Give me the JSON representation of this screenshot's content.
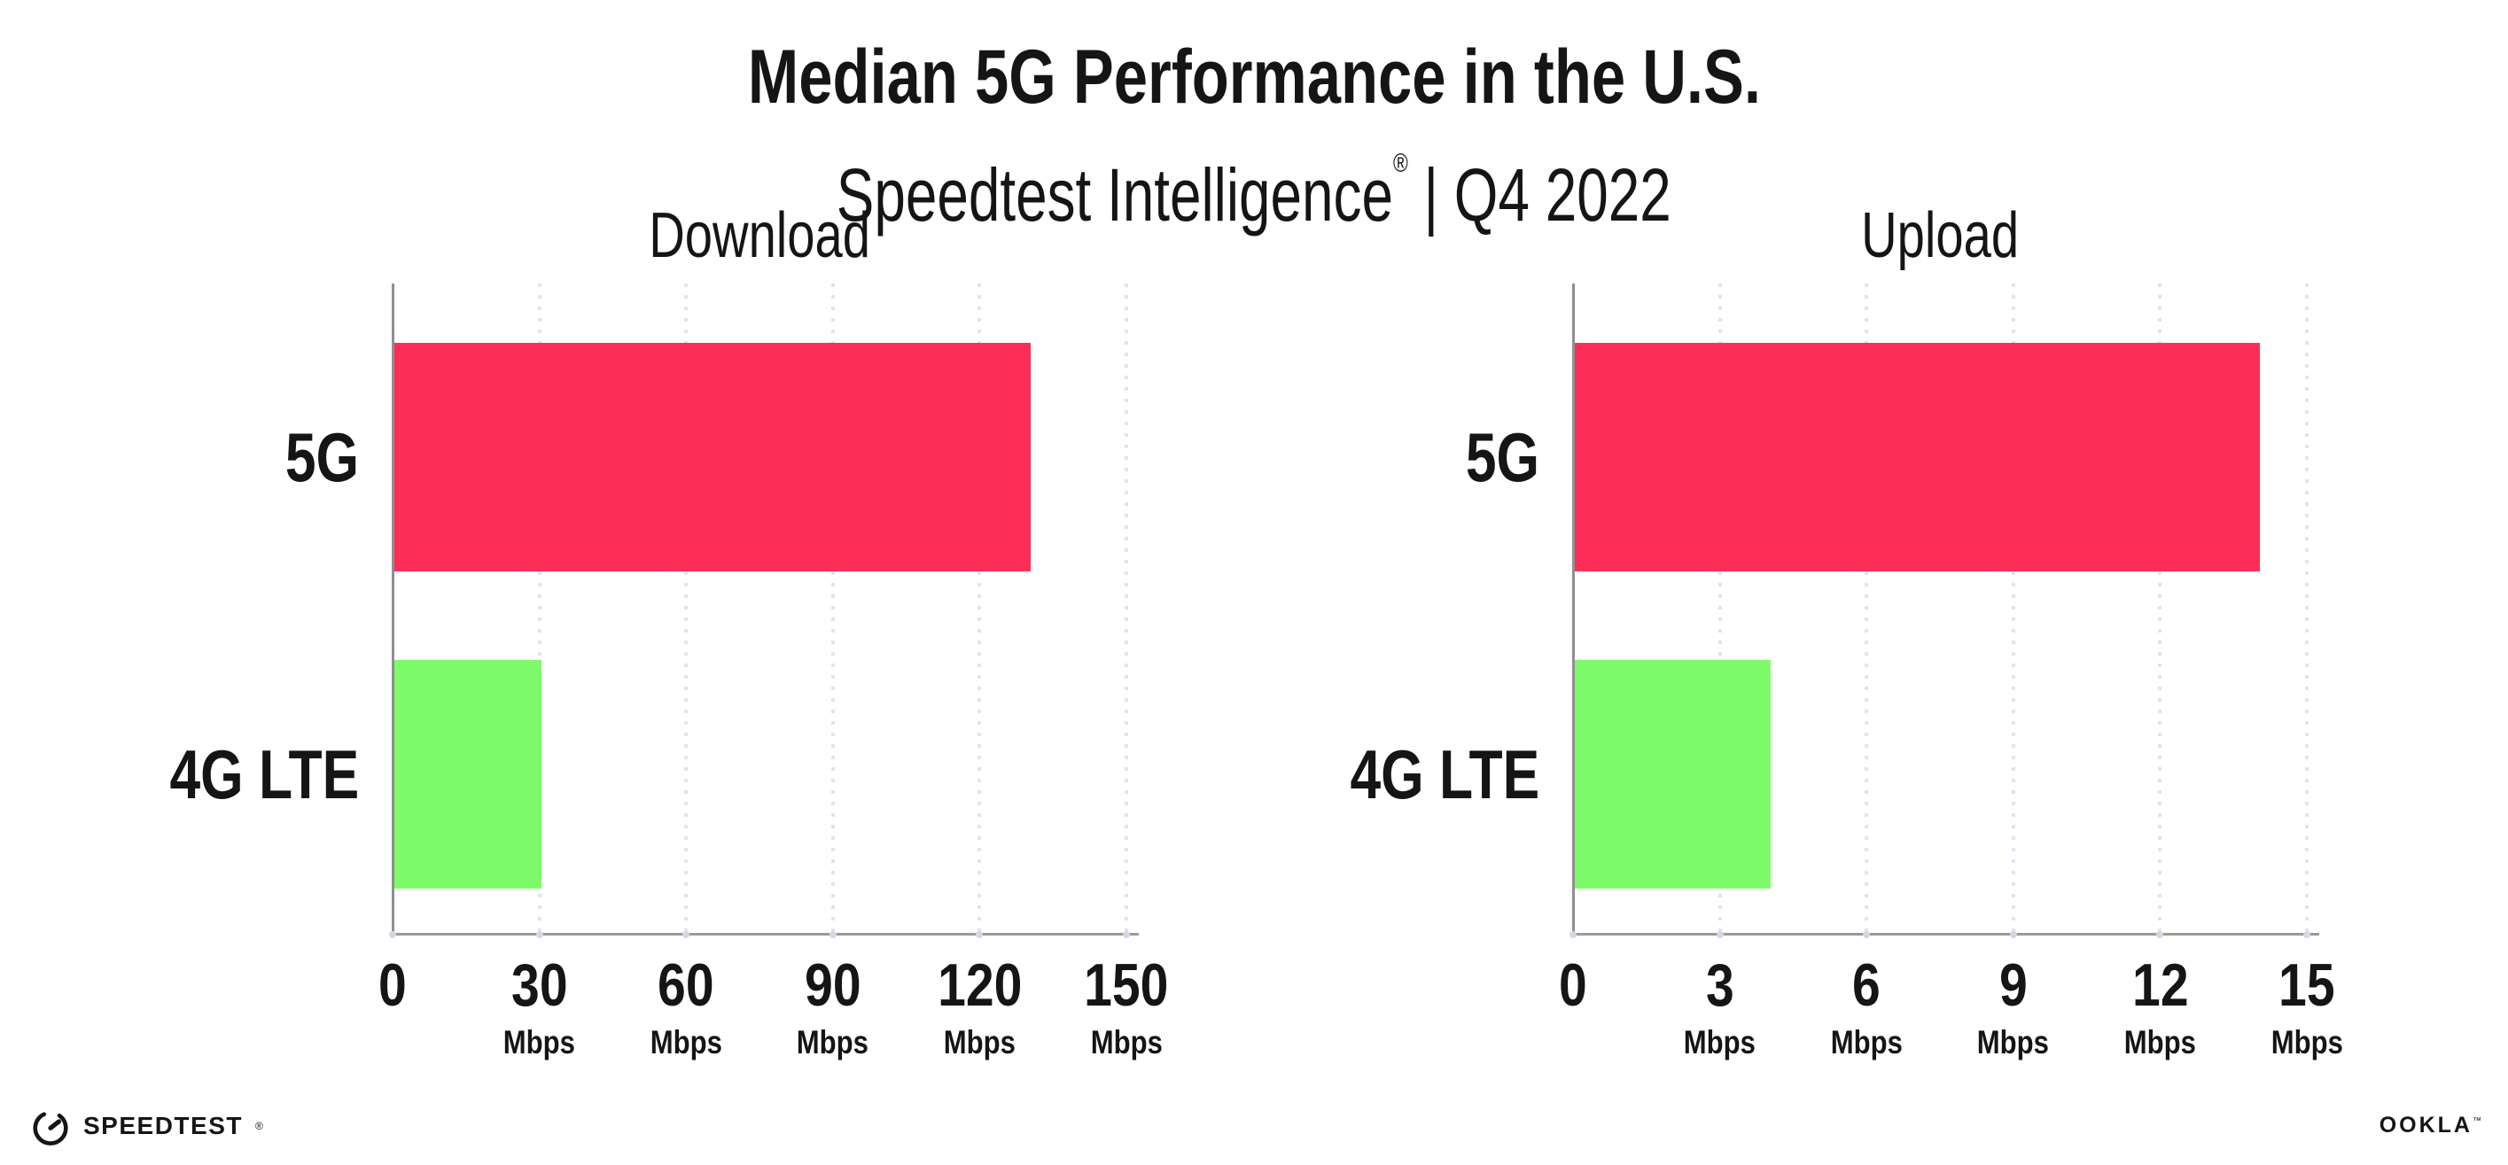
{
  "header": {
    "title": "Median 5G Performance in the U.S.",
    "subtitle_brand": "Speedtest Intelligence",
    "subtitle_mark": "®",
    "subtitle_rest": " | Q4 2022"
  },
  "chart_data": [
    {
      "type": "bar",
      "orientation": "horizontal",
      "title": "Download",
      "categories": [
        "5G",
        "4G LTE"
      ],
      "values": [
        130,
        30
      ],
      "unit": "Mbps",
      "xlabel": "",
      "ylabel": "",
      "xlim": [
        0,
        150
      ],
      "xticks": [
        0,
        30,
        60,
        90,
        120,
        150
      ],
      "bar_colors": [
        "#FC2E57",
        "#7EFB6A"
      ],
      "grid": "dotted vertical gridlines at each tick",
      "legend_position": "none"
    },
    {
      "type": "bar",
      "orientation": "horizontal",
      "title": "Upload",
      "categories": [
        "5G",
        "4G LTE"
      ],
      "values": [
        14,
        4
      ],
      "unit": "Mbps",
      "xlabel": "",
      "ylabel": "",
      "xlim": [
        0,
        15
      ],
      "xticks": [
        0,
        3,
        6,
        9,
        12,
        15
      ],
      "bar_colors": [
        "#FC2E57",
        "#7EFB6A"
      ],
      "grid": "dotted vertical gridlines at each tick",
      "legend_position": "none"
    }
  ],
  "footer": {
    "speedtest_wordmark": "SPEEDTEST",
    "speedtest_mark": "®",
    "speedtest_icon": "gauge-icon",
    "ookla_wordmark": "OOKLA",
    "ookla_mark": "™"
  },
  "colors": {
    "bar_5g": "#FC2E57",
    "bar_4g_lte": "#7EFB6A",
    "axis_line": "#9A9A9A",
    "spine": "#8F8F8F",
    "grid_dot": "#E4E2EE",
    "tick_dot": "#D8D6E4",
    "text": "#151515",
    "background": "#FFFFFF"
  }
}
